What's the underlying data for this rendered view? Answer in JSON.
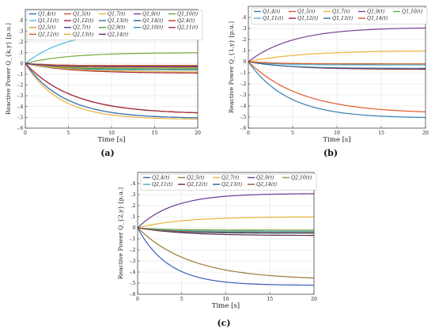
{
  "subcharts": [
    {
      "tag": "(a)",
      "xlabel": "Time [s]",
      "ylabel": "Reactive Power Q_{k,y} [p.u.]",
      "xlim": [
        0,
        20
      ],
      "ylim": [
        -0.6,
        0.5
      ],
      "xticks": [
        0,
        5,
        10,
        15,
        20
      ],
      "yticks": [
        -0.6,
        -0.5,
        -0.4,
        -0.3,
        -0.2,
        -0.1,
        0,
        0.1,
        0.2,
        0.3,
        0.4
      ],
      "grid": true,
      "legend_cols": 5,
      "series": [
        {
          "name": "Q1,4(t)",
          "color": "#2f6fb6",
          "final": -0.51,
          "tau": 4.5
        },
        {
          "name": "Q1,5(t)",
          "color": "#d9542a",
          "final": -0.47,
          "tau": 5.5
        },
        {
          "name": "Q1,7(t)",
          "color": "#e8b13b",
          "final": -0.52,
          "tau": 4.0
        },
        {
          "name": "Q1,9(t)",
          "color": "#7b3e96",
          "final": -0.03,
          "tau": 3.0
        },
        {
          "name": "Q1,10(t)",
          "color": "#71ab3a",
          "final": 0.1,
          "tau": 5.0
        },
        {
          "name": "Q1,11(t)",
          "color": "#52b8df",
          "final": 0.32,
          "tau": 5.0
        },
        {
          "name": "Q1,12(t)",
          "color": "#a8233a",
          "final": -0.09,
          "tau": 5.0
        },
        {
          "name": "Q1,13(t)",
          "color": "#3a76b0",
          "final": -0.51,
          "tau": 4.5
        },
        {
          "name": "Q1,14(t)",
          "color": "#1f5f87",
          "final": -0.03,
          "tau": 3.0
        },
        {
          "name": "Q2,4(t)",
          "color": "#c23a2a",
          "final": -0.47,
          "tau": 5.5
        },
        {
          "name": "Q2,5(t)",
          "color": "#d4a03a",
          "final": -0.04,
          "tau": 3.0
        },
        {
          "name": "Q2,7(t)",
          "color": "#5a3d8a",
          "final": -0.02,
          "tau": 3.0
        },
        {
          "name": "Q2,9(t)",
          "color": "#4f9a45",
          "final": -0.05,
          "tau": 3.0
        },
        {
          "name": "Q2,10(t)",
          "color": "#2d8fb8",
          "final": -0.06,
          "tau": 3.0
        },
        {
          "name": "Q2,11(t)",
          "color": "#a03045",
          "final": -0.47,
          "tau": 5.5
        },
        {
          "name": "Q2,12(t)",
          "color": "#d6622a",
          "final": -0.02,
          "tau": 3.0
        },
        {
          "name": "Q2,13(t)",
          "color": "#e2b03a",
          "final": -0.08,
          "tau": 5.0
        },
        {
          "name": "Q2,14(t)",
          "color": "#6a2f7e",
          "final": -0.03,
          "tau": 3.0
        }
      ]
    },
    {
      "tag": "(b)",
      "xlabel": "Time [s]",
      "ylabel": "Reactive Power Q_{1,y} [p.u.]",
      "xlim": [
        0,
        20
      ],
      "ylim": [
        -0.6,
        0.5
      ],
      "xticks": [
        0,
        5,
        10,
        15,
        20
      ],
      "yticks": [
        -0.6,
        -0.5,
        -0.4,
        -0.3,
        -0.2,
        -0.1,
        0,
        0.1,
        0.2,
        0.3,
        0.4
      ],
      "grid": true,
      "legend_cols": 5,
      "series": [
        {
          "name": "Q1,4(t)",
          "color": "#2f7fb6",
          "final": -0.51,
          "tau": 4.5
        },
        {
          "name": "Q1,5(t)",
          "color": "#e05a2a",
          "final": -0.47,
          "tau": 6.0
        },
        {
          "name": "Q1,7(t)",
          "color": "#f0b23a",
          "final": 0.1,
          "tau": 6.0
        },
        {
          "name": "Q1,9(t)",
          "color": "#7b3e96",
          "final": 0.31,
          "tau": 5.0
        },
        {
          "name": "Q1,10(t)",
          "color": "#6aab3a",
          "final": -0.02,
          "tau": 3.0
        },
        {
          "name": "Q1,11(t)",
          "color": "#4fb5de",
          "final": -0.03,
          "tau": 3.0
        },
        {
          "name": "Q1,12(t)",
          "color": "#a8233a",
          "final": -0.07,
          "tau": 5.0
        },
        {
          "name": "Q1,13(t)",
          "color": "#2a6fa4",
          "final": -0.06,
          "tau": 4.0
        },
        {
          "name": "Q1,14(t)",
          "color": "#d9542a",
          "final": -0.02,
          "tau": 3.0
        }
      ]
    },
    {
      "tag": "(c)",
      "xlabel": "Time [s]",
      "ylabel": "Reactive Power Q_{2,y} [p.u.]",
      "xlim": [
        0,
        20
      ],
      "ylim": [
        -0.6,
        0.5
      ],
      "xticks": [
        0,
        5,
        10,
        15,
        20
      ],
      "yticks": [
        -0.6,
        -0.5,
        -0.4,
        -0.3,
        -0.2,
        -0.1,
        0,
        0.1,
        0.2,
        0.3,
        0.4
      ],
      "grid": true,
      "legend_cols": 5,
      "series": [
        {
          "name": "Q2,4(t)",
          "color": "#3a5fb8",
          "final": -0.52,
          "tau": 3.5
        },
        {
          "name": "Q2,5(t)",
          "color": "#9a7a35",
          "final": -0.47,
          "tau": 6.0
        },
        {
          "name": "Q2,7(t)",
          "color": "#e8b33a",
          "final": 0.1,
          "tau": 5.0
        },
        {
          "name": "Q2,9(t)",
          "color": "#6a3a96",
          "final": 0.31,
          "tau": 4.0
        },
        {
          "name": "Q2,10(t)",
          "color": "#8aa03a",
          "final": -0.02,
          "tau": 3.0
        },
        {
          "name": "Q2,11(t)",
          "color": "#3ab0b8",
          "final": -0.03,
          "tau": 3.0
        },
        {
          "name": "Q2,12(t)",
          "color": "#6a2a4a",
          "final": -0.07,
          "tau": 5.0
        },
        {
          "name": "Q2,13(t)",
          "color": "#2a5f8a",
          "final": -0.05,
          "tau": 4.0
        },
        {
          "name": "Q2,14(t)",
          "color": "#8a5a3a",
          "final": -0.04,
          "tau": 3.0
        }
      ]
    }
  ]
}
